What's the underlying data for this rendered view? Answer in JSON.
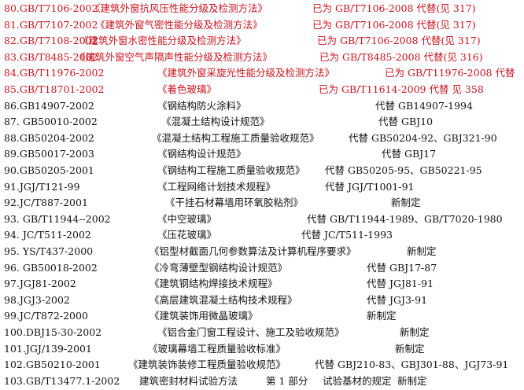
{
  "colors": {
    "superseded": "#c8141e",
    "normal": "#111111"
  },
  "rows": [
    {
      "code": "80.GB/T7106-2002",
      "title": "《建筑外窗抗风压性能分级及检测方法》",
      "note": "已为 GB/T7106-2008 代替(见 317)",
      "red": true
    },
    {
      "code": "81.GB/T7107-2002",
      "title": "《建筑外窗气密性能分级及检测方法》",
      "note": "已为 GB/T7106-2008 代替(见 317)",
      "red": true
    },
    {
      "code": "82.GB/T7108-2002",
      "title": "《建筑外窗水密性能分级及检测方法》",
      "note": "已为 GB/T7106-2008 代替(见 317)",
      "red": true
    },
    {
      "code": "83.GB/T8485-2002",
      "title": "《建筑外窗空气声隔声性能分级及检测方法》",
      "note": "已为 GB/T8485-2008 代替(见 316)",
      "red": true
    },
    {
      "code": "84.GB/T11976-2002",
      "title": "《建筑外窗采旋光性能分级及检测方法》",
      "note": "已为 GB/T11976-2008 代替",
      "red": true
    },
    {
      "code": "85.GB/T18701-2002",
      "title": "《着色玻璃》",
      "note": "已为 GB/T11614-2009 代替  见 358",
      "red": true
    },
    {
      "code": "86.GB14907-2002",
      "title": "《钢结构防火涂料》",
      "note": "代替 GB14907-1994",
      "red": false
    },
    {
      "code": "87. GB50010-2002",
      "title": "《混凝土结构设计规范》",
      "note": "代替 GBJ10",
      "red": false
    },
    {
      "code": "88.GB50204-2002",
      "title": "《混凝土结构工程施工质量验收规范》",
      "note": "代替 GB50204-92、GBJ321-90",
      "red": false
    },
    {
      "code": "89.GB50017-2003",
      "title": "《钢结构设计规范》",
      "note": "代替 GBJ17",
      "red": false
    },
    {
      "code": "90.GB50205-2001",
      "title": "《钢结构工程施工质量验收规范》",
      "note": "代替 GB50205-95、GB50221-95",
      "red": false
    },
    {
      "code": "91.JGJ/T121-99",
      "title": "《工程网络计划技术规程》",
      "note": "代替 JGJ/T1001-91",
      "red": false
    },
    {
      "code": "92.JC/T887-2001",
      "title": "《干挂石材幕墙用环氧胶粘剂》",
      "note": "新制定",
      "red": false
    },
    {
      "code": "93. GB/T11944--2002",
      "title": "《中空玻璃》",
      "note": "代替 GB/T11944-1989、GB/T7020-1980",
      "red": false
    },
    {
      "code": "94. JC/T511-2002",
      "title": "《压花玻璃》",
      "note": "代替 JC/T511-1993",
      "red": false
    },
    {
      "code": "95. YS/T437-2000",
      "title": "《铝型材截面几何参数算法及计算机程序要求》",
      "note": "新制定",
      "red": false
    },
    {
      "code": "96. GB50018-2002",
      "title": "《冷弯薄壁型钢结构设计规范》",
      "note": "代替 GBJ17-87",
      "red": false
    },
    {
      "code": "97.JGJ81-2002",
      "title": "《建筑钢结构焊接技术规程》",
      "note": "代替 JGJ81-91",
      "red": false
    },
    {
      "code": "98.JGJ3-2002",
      "title": "《高层建筑混凝土结构技术规程》",
      "note": "代替 JGJ3-91",
      "red": false
    },
    {
      "code": "99.JC/T872-2000",
      "title": "《建筑装饰用微晶玻璃》",
      "note": "新制定",
      "red": false
    },
    {
      "code": "100.DBJ15-30-2002",
      "title": "《铝合金门窗工程设计、施工及验收规范》",
      "note": "新制定",
      "red": false
    },
    {
      "code": "101.JGJ/139-2001",
      "title": "《玻璃幕墙工程质量验收标准》",
      "note": "新制定",
      "red": false
    },
    {
      "code": "102.GB50210-2001",
      "title": "《建筑装饰装修工程质量验收规范》",
      "note": "代替 GBJ210-83、GBJ301-88、JGJ73-91",
      "red": false
    },
    {
      "code": "103.GB/T13477.1-2002",
      "title": "建筑密封材料试验方法",
      "part": "第 1 部分",
      "subtitle": "试验基材的规定",
      "note": "新制定",
      "red": false
    }
  ]
}
